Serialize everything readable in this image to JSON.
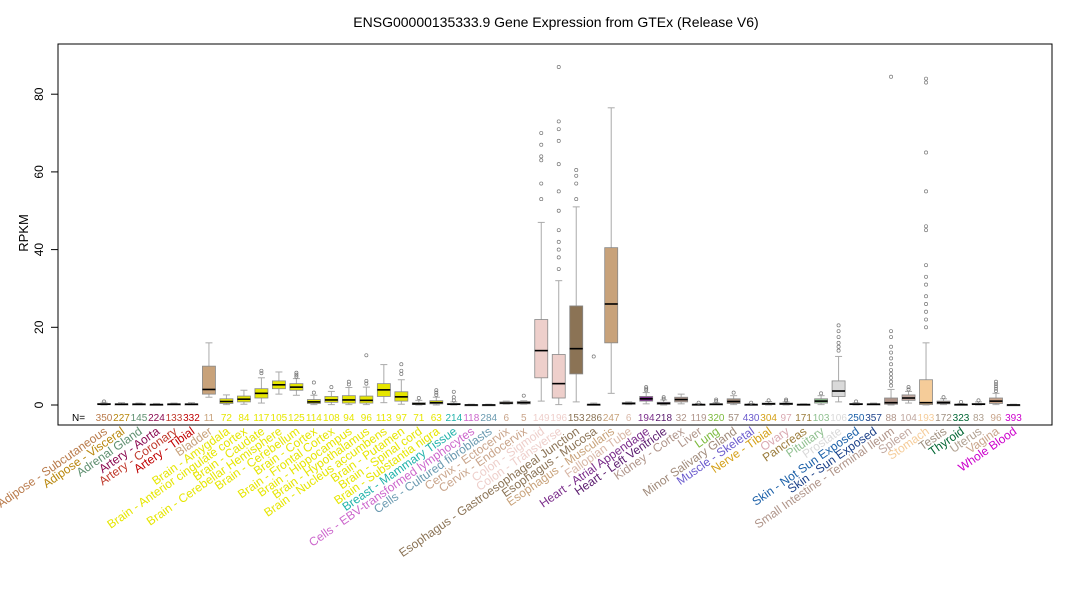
{
  "chart_data": {
    "type": "box",
    "title": "ENSG00000135333.9 Gene Expression from GTEx (Release V6)",
    "xlabel": "",
    "ylabel": "RPKM",
    "ylim": [
      -5,
      93
    ],
    "yticks": [
      0,
      20,
      40,
      60,
      80
    ],
    "n_prefix": "N=",
    "categories": [
      {
        "name": "Adipose - Subcutaneous",
        "n": "350",
        "color": "#b97a4a",
        "q1": 0.1,
        "median": 0.2,
        "q3": 0.4,
        "whislo": 0,
        "whishi": 0.7,
        "fliers": [
          0.9
        ]
      },
      {
        "name": "Adipose - Visceral",
        "n": "227",
        "color": "#b8860b",
        "q1": 0.1,
        "median": 0.2,
        "q3": 0.3,
        "whislo": 0,
        "whishi": 0.6,
        "fliers": []
      },
      {
        "name": "Adrenal Gland",
        "n": "145",
        "color": "#5e8f6f",
        "q1": 0.1,
        "median": 0.2,
        "q3": 0.3,
        "whislo": 0,
        "whishi": 0.5,
        "fliers": []
      },
      {
        "name": "Artery - Aorta",
        "n": "224",
        "color": "#8b0a50",
        "q1": 0.0,
        "median": 0.1,
        "q3": 0.2,
        "whislo": 0,
        "whishi": 0.4,
        "fliers": []
      },
      {
        "name": "Artery - Coronary",
        "n": "133",
        "color": "#c0392b",
        "q1": 0.1,
        "median": 0.2,
        "q3": 0.3,
        "whislo": 0,
        "whishi": 0.5,
        "fliers": []
      },
      {
        "name": "Artery - Tibial",
        "n": "332",
        "color": "#c00000",
        "q1": 0.1,
        "median": 0.2,
        "q3": 0.3,
        "whislo": 0,
        "whishi": 0.6,
        "fliers": []
      },
      {
        "name": "Bladder",
        "n": "11",
        "color": "#c8a27a",
        "q1": 2.8,
        "median": 4.0,
        "q3": 10.0,
        "whislo": 2.0,
        "whishi": 16.0,
        "fliers": []
      },
      {
        "name": "Brain - Amygdala",
        "n": "72",
        "color": "#e6e600",
        "q1": 0.4,
        "median": 0.9,
        "q3": 1.6,
        "whislo": 0.1,
        "whishi": 2.6,
        "fliers": []
      },
      {
        "name": "Brain - Anterior cingulate cortex",
        "n": "84",
        "color": "#e6e600",
        "q1": 0.8,
        "median": 1.5,
        "q3": 2.3,
        "whislo": 0.2,
        "whishi": 3.8,
        "fliers": []
      },
      {
        "name": "Brain - Caudate",
        "n": "117",
        "color": "#e6e600",
        "q1": 1.8,
        "median": 3.0,
        "q3": 4.2,
        "whislo": 0.5,
        "whishi": 7.0,
        "fliers": [
          8.2,
          8.8
        ]
      },
      {
        "name": "Brain - Cerebellar Hemisphere",
        "n": "105",
        "color": "#e6e600",
        "q1": 4.2,
        "median": 5.2,
        "q3": 6.2,
        "whislo": 2.8,
        "whishi": 8.5,
        "fliers": []
      },
      {
        "name": "Brain - Cerebellum",
        "n": "125",
        "color": "#e6e600",
        "q1": 3.8,
        "median": 4.6,
        "q3": 5.5,
        "whislo": 2.5,
        "whishi": 6.8,
        "fliers": [
          7.3,
          7.8,
          8.3
        ]
      },
      {
        "name": "Brain - Cortex",
        "n": "114",
        "color": "#e6e600",
        "q1": 0.4,
        "median": 0.8,
        "q3": 1.4,
        "whislo": 0.1,
        "whishi": 2.5,
        "fliers": [
          3.2,
          5.8
        ]
      },
      {
        "name": "Brain - Frontal Cortex",
        "n": "108",
        "color": "#e6e600",
        "q1": 0.7,
        "median": 1.3,
        "q3": 2.2,
        "whislo": 0.1,
        "whishi": 3.5,
        "fliers": [
          4.6
        ]
      },
      {
        "name": "Brain - Hippocampus",
        "n": "94",
        "color": "#e6e600",
        "q1": 0.5,
        "median": 1.3,
        "q3": 2.4,
        "whislo": 0.1,
        "whishi": 4.5,
        "fliers": [
          5.3,
          6.0
        ]
      },
      {
        "name": "Brain - Hypothalamus",
        "n": "96",
        "color": "#e6e600",
        "q1": 0.5,
        "median": 1.2,
        "q3": 2.3,
        "whislo": 0.1,
        "whishi": 4.6,
        "fliers": [
          5.5,
          6.2,
          12.8
        ]
      },
      {
        "name": "Brain - Nucleus accumbens",
        "n": "113",
        "color": "#e6e600",
        "q1": 2.2,
        "median": 3.9,
        "q3": 5.5,
        "whislo": 0.6,
        "whishi": 10.4,
        "fliers": []
      },
      {
        "name": "Brain - Putamen",
        "n": "97",
        "color": "#e6e600",
        "q1": 1.0,
        "median": 2.1,
        "q3": 3.4,
        "whislo": 0.2,
        "whishi": 6.5,
        "fliers": [
          8.0,
          8.8,
          10.5
        ]
      },
      {
        "name": "Brain - Spinal cord",
        "n": "71",
        "color": "#e6e600",
        "q1": 0.1,
        "median": 0.3,
        "q3": 0.6,
        "whislo": 0,
        "whishi": 1.2,
        "fliers": [
          1.8
        ]
      },
      {
        "name": "Brain - Substantia nigra",
        "n": "63",
        "color": "#e6e600",
        "q1": 0.3,
        "median": 0.6,
        "q3": 1.1,
        "whislo": 0,
        "whishi": 2.0,
        "fliers": [
          2.6,
          3.2,
          3.8
        ]
      },
      {
        "name": "Breast - Mammary Tissue",
        "n": "214",
        "color": "#20b2aa",
        "q1": 0.1,
        "median": 0.2,
        "q3": 0.4,
        "whislo": 0,
        "whishi": 0.8,
        "fliers": [
          1.2,
          2.0,
          3.4
        ]
      },
      {
        "name": "Cells - EBV-transformed lymphocytes",
        "n": "118",
        "color": "#cc66cc",
        "q1": 0.0,
        "median": 0.0,
        "q3": 0.1,
        "whislo": 0,
        "whishi": 0.2,
        "fliers": []
      },
      {
        "name": "Cells - Cultured fibroblasts",
        "n": "284",
        "color": "#6a9ab0",
        "q1": 0.0,
        "median": 0.0,
        "q3": 0.1,
        "whislo": 0,
        "whishi": 0.2,
        "fliers": []
      },
      {
        "name": "Cervix - Ectocervix",
        "n": "6",
        "color": "#c9a48a",
        "q1": 0.3,
        "median": 0.5,
        "q3": 0.8,
        "whislo": 0.2,
        "whishi": 1.0,
        "fliers": []
      },
      {
        "name": "Cervix - Endocervix",
        "n": "5",
        "color": "#c9a48a",
        "q1": 0.3,
        "median": 0.6,
        "q3": 0.9,
        "whislo": 0.2,
        "whishi": 1.1,
        "fliers": [
          2.4
        ]
      },
      {
        "name": "Colon - Sigmoid",
        "n": "149",
        "color": "#eecfcb",
        "q1": 7.0,
        "median": 14.0,
        "q3": 22.0,
        "whislo": 1.0,
        "whishi": 47.0,
        "fliers": [
          53.0,
          57.0,
          63.0,
          64.0,
          67.0,
          70.0
        ]
      },
      {
        "name": "Colon - Transverse",
        "n": "196",
        "color": "#eecfcb",
        "q1": 1.8,
        "median": 5.5,
        "q3": 13.0,
        "whislo": 0.1,
        "whishi": 32.0,
        "fliers": [
          35.0,
          38.0,
          40.0,
          42.0,
          45.0,
          50.0,
          55.0,
          62.0,
          68.0,
          71.0,
          73.0,
          87.0
        ]
      },
      {
        "name": "Esophagus - Gastroesophageal Junction",
        "n": "153",
        "color": "#8b7355",
        "q1": 8.0,
        "median": 14.5,
        "q3": 25.5,
        "whislo": 0.8,
        "whishi": 51.0,
        "fliers": [
          53.0,
          57.0,
          59.0,
          60.5
        ]
      },
      {
        "name": "Esophagus - Mucosa",
        "n": "286",
        "color": "#8b7355",
        "q1": 0.0,
        "median": 0.1,
        "q3": 0.2,
        "whislo": 0,
        "whishi": 0.5,
        "fliers": [
          12.5
        ]
      },
      {
        "name": "Esophagus - Muscularis",
        "n": "247",
        "color": "#c8a27a",
        "q1": 16.0,
        "median": 26.0,
        "q3": 40.5,
        "whislo": 3.0,
        "whishi": 76.5,
        "fliers": []
      },
      {
        "name": "Fallopian Tube",
        "n": "6",
        "color": "#d9b8a8",
        "q1": 0.2,
        "median": 0.4,
        "q3": 0.6,
        "whislo": 0.1,
        "whishi": 0.8,
        "fliers": []
      },
      {
        "name": "Heart - Atrial Appendage",
        "n": "194",
        "color": "#7b2d8b",
        "q1": 1.0,
        "median": 1.6,
        "q3": 2.2,
        "whislo": 0.3,
        "whishi": 3.2,
        "fliers": [
          3.8,
          4.2,
          4.6
        ]
      },
      {
        "name": "Heart - Left Ventricle",
        "n": "218",
        "color": "#5a1a6e",
        "q1": 0.2,
        "median": 0.4,
        "q3": 0.7,
        "whislo": 0,
        "whishi": 1.3,
        "fliers": [
          1.6,
          2.0
        ]
      },
      {
        "name": "Kidney - Cortex",
        "n": "32",
        "color": "#b0958a",
        "q1": 0.8,
        "median": 1.4,
        "q3": 2.0,
        "whislo": 0.3,
        "whishi": 2.8,
        "fliers": []
      },
      {
        "name": "Liver",
        "n": "119",
        "color": "#b0958a",
        "q1": 0.0,
        "median": 0.1,
        "q3": 0.2,
        "whislo": 0,
        "whishi": 0.4,
        "fliers": [
          0.6
        ]
      },
      {
        "name": "Lung",
        "n": "320",
        "color": "#7cba3c",
        "q1": 0.1,
        "median": 0.2,
        "q3": 0.3,
        "whislo": 0,
        "whishi": 0.6,
        "fliers": [
          1.0,
          1.4
        ]
      },
      {
        "name": "Minor Salivary Gland",
        "n": "57",
        "color": "#a08a7a",
        "q1": 0.4,
        "median": 0.9,
        "q3": 1.6,
        "whislo": 0.1,
        "whishi": 2.4,
        "fliers": [
          3.2
        ]
      },
      {
        "name": "Muscle - Skeletal",
        "n": "430",
        "color": "#6a5acd",
        "q1": 0.0,
        "median": 0.1,
        "q3": 0.2,
        "whislo": 0,
        "whishi": 0.4,
        "fliers": [
          0.6
        ]
      },
      {
        "name": "Nerve - Tibial",
        "n": "304",
        "color": "#d4a017",
        "q1": 0.1,
        "median": 0.3,
        "q3": 0.5,
        "whislo": 0,
        "whishi": 0.9,
        "fliers": [
          1.2
        ]
      },
      {
        "name": "Ovary",
        "n": "97",
        "color": "#d9a8b0",
        "q1": 0.1,
        "median": 0.3,
        "q3": 0.5,
        "whislo": 0,
        "whishi": 0.8,
        "fliers": [
          1.1,
          1.4
        ]
      },
      {
        "name": "Pancreas",
        "n": "171",
        "color": "#9a7b3a",
        "q1": 0.0,
        "median": 0.1,
        "q3": 0.2,
        "whislo": 0,
        "whishi": 0.3,
        "fliers": []
      },
      {
        "name": "Pituitary",
        "n": "103",
        "color": "#90c090",
        "q1": 0.5,
        "median": 1.0,
        "q3": 1.6,
        "whislo": 0.1,
        "whishi": 2.4,
        "fliers": [
          3.0
        ]
      },
      {
        "name": "Prostate",
        "n": "106",
        "color": "#d9d9d9",
        "q1": 2.2,
        "median": 3.6,
        "q3": 6.2,
        "whislo": 0.8,
        "whishi": 12.5,
        "fliers": [
          14.0,
          15.0,
          16.0,
          17.5,
          19.0,
          20.5
        ]
      },
      {
        "name": "Skin - Not Sun Exposed",
        "n": "250",
        "color": "#1a5fa8",
        "q1": 0.1,
        "median": 0.2,
        "q3": 0.4,
        "whislo": 0,
        "whishi": 0.6,
        "fliers": [
          0.9
        ]
      },
      {
        "name": "Skin - Sun Exposed",
        "n": "357",
        "color": "#1a3f88",
        "q1": 0.1,
        "median": 0.2,
        "q3": 0.3,
        "whislo": 0,
        "whishi": 0.5,
        "fliers": []
      },
      {
        "name": "Small Intestine - Terminal Ileum",
        "n": "88",
        "color": "#b0958a",
        "q1": 0.2,
        "median": 0.6,
        "q3": 1.8,
        "whislo": 0,
        "whishi": 4.0,
        "fliers": [
          5.0,
          6.0,
          7.0,
          8.0,
          9.0,
          10.5,
          12.0,
          13.5,
          15.0,
          17.5,
          19.0,
          84.5
        ]
      },
      {
        "name": "Spleen",
        "n": "104",
        "color": "#c0a8a0",
        "q1": 1.2,
        "median": 1.8,
        "q3": 2.6,
        "whislo": 0.5,
        "whishi": 3.5,
        "fliers": [
          4.0,
          4.6
        ]
      },
      {
        "name": "Stomach",
        "n": "193",
        "color": "#f5cc99",
        "q1": 0.1,
        "median": 0.6,
        "q3": 6.5,
        "whislo": 0,
        "whishi": 16.0,
        "fliers": [
          20.0,
          22.0,
          24.0,
          26.0,
          28.0,
          31.0,
          33.0,
          36.0,
          45.0,
          46.0,
          55.0,
          65.0,
          83.0,
          84.0
        ]
      },
      {
        "name": "Testis",
        "n": "172",
        "color": "#a09080",
        "q1": 0.3,
        "median": 0.6,
        "q3": 1.0,
        "whislo": 0.1,
        "whishi": 1.6,
        "fliers": [
          2.0
        ]
      },
      {
        "name": "Thyroid",
        "n": "323",
        "color": "#006633",
        "q1": 0.0,
        "median": 0.1,
        "q3": 0.2,
        "whislo": 0,
        "whishi": 0.4,
        "fliers": [
          0.8
        ]
      },
      {
        "name": "Uterus",
        "n": "83",
        "color": "#b0a090",
        "q1": 0.1,
        "median": 0.2,
        "q3": 0.4,
        "whislo": 0,
        "whishi": 0.8,
        "fliers": [
          1.2
        ]
      },
      {
        "name": "Vagina",
        "n": "96",
        "color": "#c9a48a",
        "q1": 0.4,
        "median": 1.0,
        "q3": 1.8,
        "whislo": 0.1,
        "whishi": 3.0,
        "fliers": [
          3.6,
          4.2,
          4.8,
          5.4,
          6.0
        ]
      },
      {
        "name": "Whole Blood",
        "n": "393",
        "color": "#cc00cc",
        "q1": 0.0,
        "median": 0.0,
        "q3": 0.1,
        "whislo": 0,
        "whishi": 0.2,
        "fliers": []
      }
    ]
  }
}
